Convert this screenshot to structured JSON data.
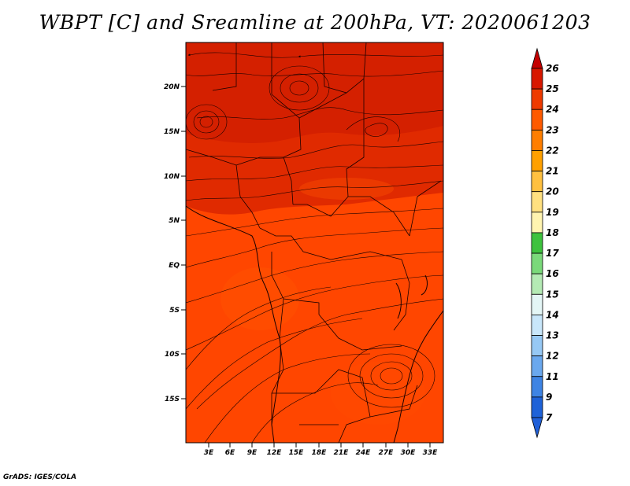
{
  "title": "WBPT [C] and Sreamline at 200hPa, VT: 2020061203",
  "credit": "GrADS: IGES/COLA",
  "map": {
    "lat_ticks": [
      "20N",
      "15N",
      "10N",
      "5N",
      "EQ",
      "5S",
      "10S",
      "15S"
    ],
    "lon_ticks": [
      "3E",
      "6E",
      "9E",
      "12E",
      "15E",
      "18E",
      "21E",
      "24E",
      "27E",
      "30E",
      "33E"
    ],
    "field": "WBPT",
    "dominant_range": "23-25"
  },
  "colorbar": {
    "labels": [
      "26",
      "25",
      "24",
      "23",
      "22",
      "21",
      "20",
      "19",
      "18",
      "17",
      "16",
      "15",
      "14",
      "13",
      "12",
      "11",
      "9",
      "7"
    ],
    "colors": [
      "#c40000",
      "#d81800",
      "#ee3a00",
      "#ff5a00",
      "#ff7e00",
      "#ffa000",
      "#ffc040",
      "#ffe080",
      "#fff4b0",
      "#3ec23e",
      "#7ad97a",
      "#b4eab4",
      "#e4f6f6",
      "#c8e6fa",
      "#96c8f4",
      "#6aa8ee",
      "#3e84e4",
      "#1e62d8",
      "#2060d8"
    ]
  }
}
